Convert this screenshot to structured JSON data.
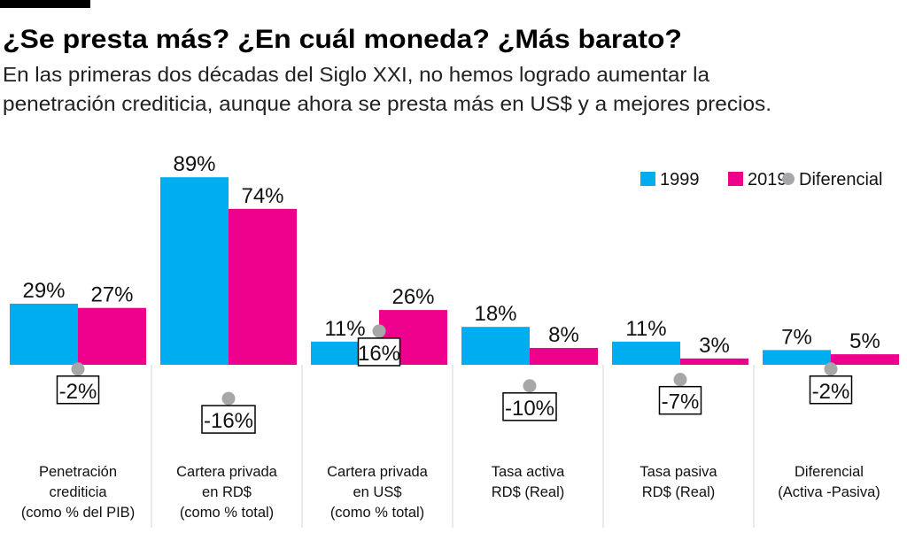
{
  "title": "¿Se presta más? ¿En cuál moneda? ¿Más barato?",
  "subtitle": [
    "En las primeras dos décadas del Siglo XXI, no hemos logrado aumentar la",
    "penetración crediticia, aunque ahora se presta más en US$ y a mejores precios."
  ],
  "colors": {
    "1999": "#00aeef",
    "2019": "#ec008c",
    "diferencial": "#a7a7aa"
  },
  "chart_data": {
    "type": "bar",
    "legend_position": "top-right",
    "grid": false,
    "categories": [
      [
        "Penetración",
        "crediticia",
        "(como % del PIB)"
      ],
      [
        "Cartera privada",
        "en RD$",
        "(como % total)"
      ],
      [
        "Cartera privada",
        "en US$",
        "(como % total)"
      ],
      [
        "Tasa activa",
        "RD$ (Real)"
      ],
      [
        "Tasa pasiva",
        "RD$ (Real)"
      ],
      [
        "Diferencial",
        "(Activa -Pasiva)"
      ]
    ],
    "series": [
      {
        "name": "1999",
        "values": [
          29,
          89,
          11,
          18,
          11,
          7
        ],
        "labels": [
          "29%",
          "89%",
          "11%",
          "18%",
          "11%",
          "7%"
        ]
      },
      {
        "name": "2019",
        "values": [
          27,
          74,
          26,
          8,
          3,
          5
        ],
        "labels": [
          "27%",
          "74%",
          "26%",
          "8%",
          "3%",
          "5%"
        ]
      },
      {
        "name": "Diferencial",
        "values": [
          -2,
          -16,
          16,
          -10,
          -7,
          -2
        ],
        "labels": [
          "-2%",
          "-16%",
          "16%",
          "-10%",
          "-7%",
          "-2%"
        ]
      }
    ]
  }
}
